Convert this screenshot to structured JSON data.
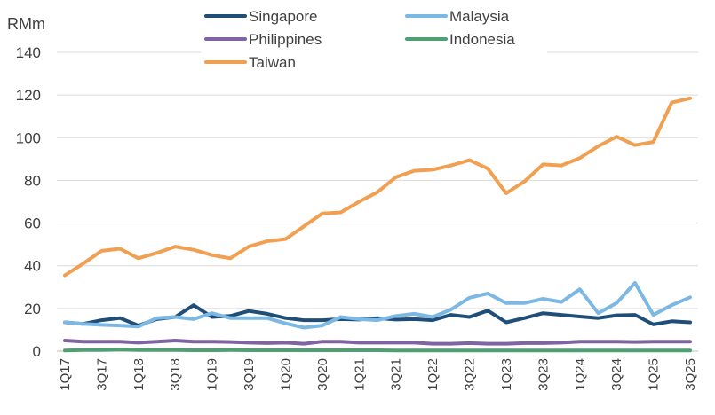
{
  "chart_data": {
    "type": "line",
    "title": "",
    "unit_label": "RMm",
    "xlabel": "",
    "ylabel": "",
    "ylim": [
      0,
      140
    ],
    "yticks": [
      0,
      20,
      40,
      60,
      80,
      100,
      120,
      140
    ],
    "grid": true,
    "legend_position": "top",
    "x": [
      "1Q17",
      "2Q17",
      "3Q17",
      "4Q17",
      "1Q18",
      "2Q18",
      "3Q18",
      "4Q18",
      "1Q19",
      "2Q19",
      "3Q19",
      "4Q19",
      "1Q20",
      "2Q20",
      "3Q20",
      "4Q20",
      "1Q21",
      "2Q21",
      "3Q21",
      "4Q21",
      "1Q22",
      "2Q22",
      "3Q22",
      "4Q22",
      "1Q23",
      "2Q23",
      "3Q23",
      "4Q23",
      "1Q24",
      "2Q24",
      "3Q24",
      "4Q24",
      "1Q25",
      "2Q25",
      "3Q25"
    ],
    "x_tick_labels": [
      "1Q17",
      "3Q17",
      "1Q18",
      "3Q18",
      "1Q19",
      "3Q19",
      "1Q20",
      "3Q20",
      "1Q21",
      "3Q21",
      "1Q22",
      "3Q22",
      "1Q23",
      "3Q23",
      "1Q24",
      "3Q24",
      "1Q25",
      "3Q25"
    ],
    "series": [
      {
        "name": "Singapore",
        "color": "#1f4e79",
        "values": [
          13.5,
          12.8,
          14.5,
          15.5,
          12,
          15,
          16,
          21.5,
          16,
          16.5,
          18.8,
          17.5,
          15.5,
          14.5,
          14.5,
          15,
          14.8,
          15.5,
          14.8,
          15,
          14.5,
          17,
          16,
          19,
          13.5,
          15.5,
          17.8,
          17,
          16.2,
          15.5,
          16.8,
          17,
          12.5,
          14,
          13.5
        ]
      },
      {
        "name": "Malaysia",
        "color": "#7cb8e4",
        "values": [
          13.5,
          12.8,
          12.3,
          12,
          11.5,
          15.5,
          16,
          15,
          17.8,
          15.5,
          15.5,
          15.5,
          13,
          11,
          12,
          16,
          15,
          14.5,
          16.5,
          17.5,
          16,
          19.5,
          25,
          27,
          22.5,
          22.5,
          24.5,
          23,
          29,
          17.8,
          22.5,
          32,
          17,
          21.5,
          25.2
        ]
      },
      {
        "name": "Philippines",
        "color": "#8064a2",
        "values": [
          5,
          4.5,
          4.5,
          4.5,
          4,
          4.5,
          5,
          4.5,
          4.5,
          4.3,
          4,
          3.8,
          4,
          3.5,
          4.5,
          4.5,
          4,
          4,
          4,
          4,
          3.5,
          3.5,
          3.8,
          3.5,
          3.5,
          3.8,
          3.8,
          4,
          4.5,
          4.5,
          4.5,
          4.3,
          4.5,
          4.5,
          4.5
        ]
      },
      {
        "name": "Indonesia",
        "color": "#4ea072",
        "values": [
          0.3,
          0.5,
          0.5,
          0.7,
          0.5,
          0.5,
          0.5,
          0.4,
          0.4,
          0.5,
          0.4,
          0.4,
          0.4,
          0.4,
          0.4,
          0.4,
          0.4,
          0.4,
          0.3,
          0.3,
          0.3,
          0.3,
          0.3,
          0.3,
          0.3,
          0.3,
          0.3,
          0.3,
          0.3,
          0.3,
          0.3,
          0.3,
          0.3,
          0.3,
          0.3
        ]
      },
      {
        "name": "Taiwan",
        "color": "#f0a050",
        "values": [
          35.5,
          41,
          47,
          48,
          43.5,
          46,
          49,
          47.5,
          45,
          43.5,
          49,
          51.5,
          52.5,
          58.5,
          64.5,
          65,
          70,
          74.5,
          81.5,
          84.5,
          85,
          87,
          89.5,
          85.5,
          74,
          79.5,
          87.5,
          87,
          90.5,
          96,
          100.5,
          96.5,
          98,
          116.5,
          118.5
        ]
      }
    ]
  }
}
